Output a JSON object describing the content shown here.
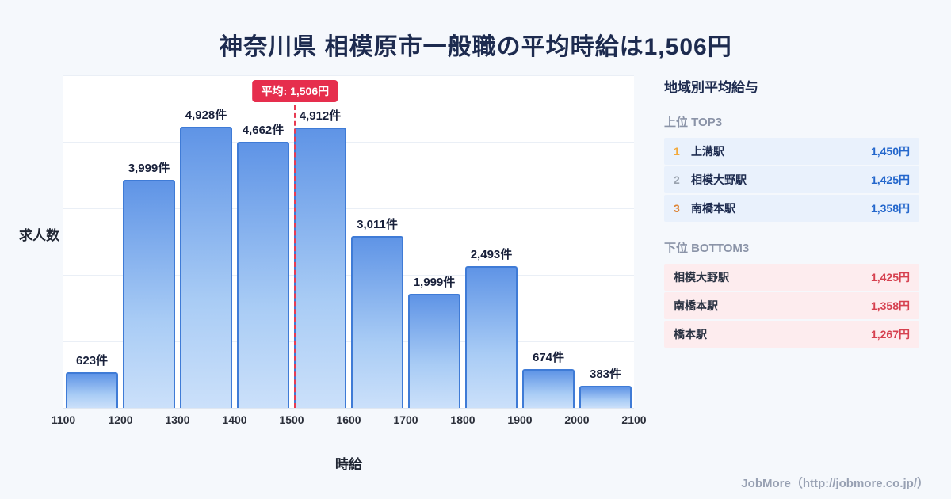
{
  "title": "神奈川県 相模原市一般職の平均時給は1,506円",
  "chart_data": {
    "type": "bar",
    "categories": [
      "1100-1200",
      "1200-1300",
      "1300-1400",
      "1400-1500",
      "1500-1600",
      "1600-1700",
      "1700-1800",
      "1800-1900",
      "1900-2000",
      "2000-2100"
    ],
    "bin_edges": [
      "1100",
      "1200",
      "1300",
      "1400",
      "1500",
      "1600",
      "1700",
      "1800",
      "1900",
      "2000",
      "2100"
    ],
    "values": [
      623,
      3999,
      4928,
      4662,
      4912,
      3011,
      1999,
      2493,
      674,
      383
    ],
    "value_labels": [
      "623件",
      "3,999件",
      "4,928件",
      "4,662件",
      "4,912件",
      "3,011件",
      "1,999件",
      "2,493件",
      "674件",
      "383件"
    ],
    "xlabel": "時給",
    "ylabel": "求人数",
    "ylim": [
      0,
      5000
    ],
    "x_range": [
      1100,
      2100
    ],
    "grid": true,
    "average": {
      "value": 1506,
      "label": "平均: 1,506円"
    }
  },
  "panel": {
    "title": "地域別平均給与",
    "top": {
      "heading": "上位 TOP3",
      "rows": [
        {
          "rank": "1",
          "name": "上溝駅",
          "price": "1,450円"
        },
        {
          "rank": "2",
          "name": "相模大野駅",
          "price": "1,425円"
        },
        {
          "rank": "3",
          "name": "南橋本駅",
          "price": "1,358円"
        }
      ]
    },
    "bottom": {
      "heading": "下位 BOTTOM3",
      "rows": [
        {
          "name": "相模大野駅",
          "price": "1,425円"
        },
        {
          "name": "南橋本駅",
          "price": "1,358円"
        },
        {
          "name": "橋本駅",
          "price": "1,267円"
        }
      ]
    }
  },
  "footer": "JobMore（http://jobmore.co.jp/）",
  "colors": {
    "bar_border": "#3f7bd6",
    "bar_fill_top": "#5f94e6",
    "bar_fill_bottom": "#cbe0fa",
    "average_red": "#e62e4d",
    "price_blue": "#2467cc",
    "price_red": "#d6404f",
    "rank_gold": "#f2a93b",
    "rank_silver": "#9aa3af",
    "rank_bronze": "#dd8435",
    "title_navy": "#1d2b4f",
    "page_bg": "#f5f8fc"
  }
}
